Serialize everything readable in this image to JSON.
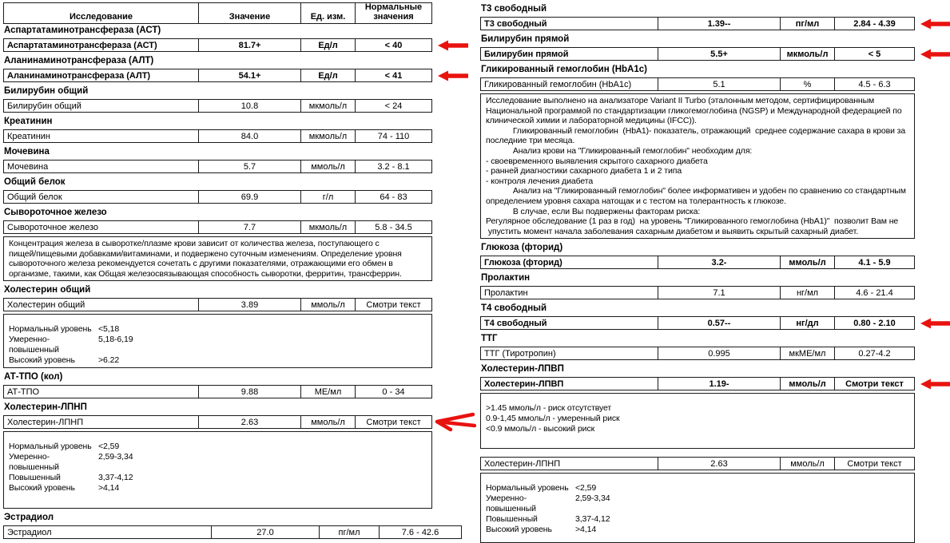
{
  "colors": {
    "arrow": "#e8120f",
    "border": "#1a1a1a",
    "text": "#000000",
    "background": "#ffffff"
  },
  "table_header": {
    "study": "Исследование",
    "value": "Значение",
    "units": "Ед. изм.",
    "normal": "Нормальные значения"
  },
  "left_sections": [
    {
      "title": "Аспартатаминотрансфераза (АСТ)",
      "rows": [
        {
          "name": "Аспартатаминотрансфераза (АСТ)",
          "value": "81.7+",
          "units": "Ед/л",
          "normal": "< 40",
          "bold": true,
          "arrow": "block"
        }
      ]
    },
    {
      "title": "Аланинаминотрансфераза (АЛТ)",
      "rows": [
        {
          "name": "Аланинаминотрансфераза (АЛТ)",
          "value": "54.1+",
          "units": "Ед/л",
          "normal": "< 41",
          "bold": true,
          "arrow": "block"
        }
      ]
    },
    {
      "title": "Билирубин общий",
      "rows": [
        {
          "name": "Билирубин общий",
          "value": "10.8",
          "units": "мкмоль/л",
          "normal": "< 24"
        }
      ]
    },
    {
      "title": "Креатинин",
      "rows": [
        {
          "name": "Креатинин",
          "value": "84.0",
          "units": "мкмоль/л",
          "normal": "74 - 110"
        }
      ]
    },
    {
      "title": "Мочевина",
      "rows": [
        {
          "name": "Мочевина",
          "value": "5.7",
          "units": "ммоль/л",
          "normal": "3.2 - 8.1"
        }
      ]
    },
    {
      "title": "Общий белок",
      "rows": [
        {
          "name": "Общий белок",
          "value": "69.9",
          "units": "г/л",
          "normal": "64 - 83"
        }
      ]
    },
    {
      "title": "Сывороточное железо",
      "rows": [
        {
          "name": "Сывороточное железо",
          "value": "7.7",
          "units": "мкмоль/л",
          "normal": "5.8 - 34.5"
        }
      ],
      "note": {
        "lines": [
          "Концентрация железа в сыворотке/плазме крови зависит от количества железа, поступающего с",
          "пищей/пищевыми добавками/витаминами, и подвержено суточным изменениям. Определение уровня",
          "сывороточного железа рекомендуется сочетать с другими показателями, отражающими его обмен в",
          "организме, такими, как Общая железосвязывающая способность сыворотки, ферритин, трансферрин."
        ]
      }
    },
    {
      "title": "Холестерин общий",
      "rows": [
        {
          "name": "Холестерин общий",
          "value": "3.89",
          "units": "ммоль/л",
          "normal": "Смотри текст"
        }
      ],
      "note": {
        "pad_top": true,
        "pairs": [
          [
            "Нормальный уровень",
            "<5,18"
          ],
          [
            "Умеренно-повышенный",
            "5,18-6,19"
          ],
          [
            "Высокий уровень",
            ">6.22"
          ]
        ]
      }
    },
    {
      "title": "АТ-ТПО  (кол)",
      "rows": [
        {
          "name": "АТ-ТПО",
          "value": "9.88",
          "units": "МЕ/мл",
          "normal": "0 - 34"
        }
      ]
    },
    {
      "title": "Холестерин-ЛПНП",
      "rows": [
        {
          "name": "Холестерин-ЛПНП",
          "value": "2.63",
          "units": "ммоль/л",
          "normal": "Смотри текст",
          "arrow": "sketch"
        }
      ],
      "note": {
        "pad_top": true,
        "tall": true,
        "pairs": [
          [
            "Нормальный уровень",
            "<2,59"
          ],
          [
            "Умеренно-повышенный",
            "2,59-3,34"
          ],
          [
            "Повышенный",
            "3,37-4,12"
          ],
          [
            "Высокий уровень",
            ">4,14"
          ]
        ]
      }
    },
    {
      "title": "Эстрадиол",
      "wide": true,
      "rows": [
        {
          "name": "Эстрадиол",
          "value": "27.0",
          "units": "пг/мл",
          "normal": "7.6 - 42.6"
        }
      ]
    }
  ],
  "right_sections": [
    {
      "title": "Т3 свободный",
      "rows": [
        {
          "name": "Т3 свободный",
          "value": "1.39--",
          "units": "пг/мл",
          "normal": "2.84 - 4.39",
          "bold": true,
          "arrow": "block"
        }
      ]
    },
    {
      "title": "Билирубин прямой",
      "rows": [
        {
          "name": "Билирубин прямой",
          "value": "5.5+",
          "units": "мкмоль/л",
          "normal": "< 5",
          "bold": true,
          "arrow": "block"
        }
      ]
    },
    {
      "title": "Гликированный гемоглобин (HbA1c)",
      "rows": [
        {
          "name": "Гликированный гемоглобин (HbA1c)",
          "value": "5.1",
          "units": "%",
          "normal": "4.5 - 6.3"
        }
      ],
      "note": {
        "lines": [
          "Исследование выполнено на анализаторе Variant II Turbo (эталонным методом, сертифицированным",
          "Национальной программой по стандартизации гликогемоглобина (NGSP) и Международной федерацией по",
          "клинической химии и лабораторной медицины (IFCC)).",
          "            Гликированный гемоглобин  (HbA1)- показатель, отражающий  среднее содержание сахара в крови за",
          "последние три месяца.",
          "            Анализ крови на \"Гликированный гемоглобин\" необходим для:",
          "- своевременного выявления скрытого сахарного диабета",
          "- ранней диагностики сахарного диабета 1 и 2 типа",
          "- контроля лечения диабета",
          "            Анализ на \"Гликированный гемоглобин\" более информативен и удобен по сравнению со стандартным",
          "определением уровня сахара натощак и с тестом на толерантность к глюкозе.",
          "            В случае, если Вы подвержены факторам риска:",
          "Регулярное обследование (1 раз в год)  на уровень \"Гликированного гемоглобина (HbA1)\"  позволит Вам не",
          " упустить момент начала заболевания сахарным диабетом и выявить скрытый сахарный диабет."
        ]
      }
    },
    {
      "title": "Глюкоза (фторид)",
      "rows": [
        {
          "name": "Глюкоза (фторид)",
          "value": "3.2-",
          "units": "ммоль/л",
          "normal": "4.1 - 5.9",
          "bold": true
        }
      ]
    },
    {
      "title": "Пролактин",
      "rows": [
        {
          "name": "Пролактин",
          "value": "7.1",
          "units": "нг/мл",
          "normal": "4.6 - 21.4"
        }
      ]
    },
    {
      "title": "Т4 свободный",
      "rows": [
        {
          "name": "Т4 свободный",
          "value": "0.57--",
          "units": "нг/дл",
          "normal": "0.80 - 2.10",
          "bold": true,
          "arrow": "block"
        }
      ]
    },
    {
      "title": "ТТГ",
      "rows": [
        {
          "name": "ТТГ (Тиротропин)",
          "value": "0.995",
          "units": "мкМЕ/мл",
          "normal": "0.27-4.2"
        }
      ]
    },
    {
      "title": "Холестерин-ЛПВП",
      "rows": [
        {
          "name": "Холестерин-ЛПВП",
          "value": "1.19-",
          "units": "ммоль/л",
          "normal": "Смотри текст",
          "bold": true,
          "arrow": "block"
        }
      ],
      "note": {
        "pad_top": true,
        "tall": true,
        "lines": [
          ">1.45 ммоль/л - риск отсутствует",
          "0.9-1,45 ммоль/л - умеренный риск",
          "<0.9 ммоль/л - высокий риск"
        ]
      }
    },
    {
      "title": "",
      "gap_top": true,
      "rows": [
        {
          "name": "Холестерин-ЛПНП",
          "value": "2.63",
          "units": "ммоль/л",
          "normal": "Смотри текст"
        }
      ],
      "note": {
        "pad_top": true,
        "fill_bottom": true,
        "pairs": [
          [
            "Нормальный уровень",
            "<2,59"
          ],
          [
            "Умеренно-повышенный",
            "2,59-3,34"
          ],
          [
            "Повышенный",
            "3,37-4,12"
          ],
          [
            "Высокий уровень",
            ">4,14"
          ]
        ]
      }
    }
  ]
}
